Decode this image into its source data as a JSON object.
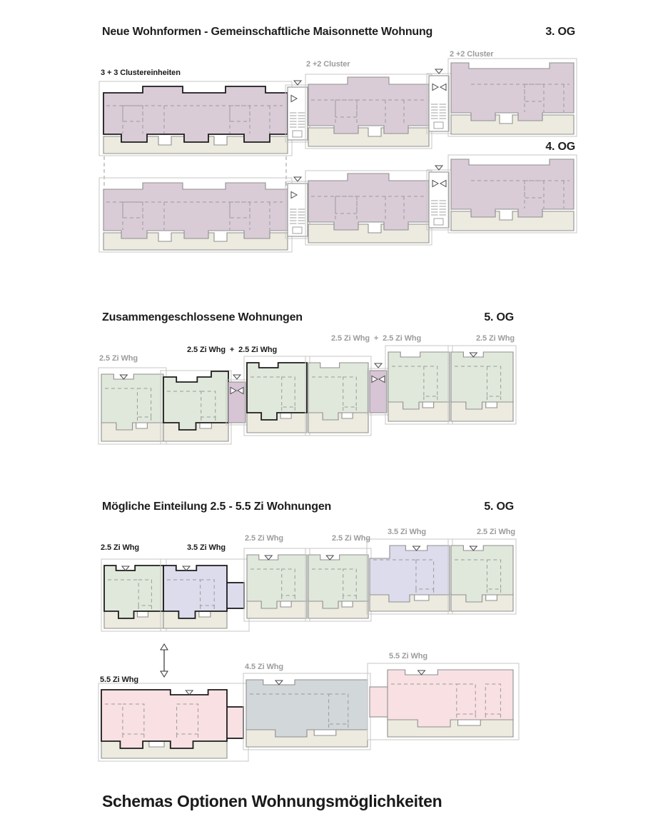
{
  "sections": {
    "s1": {
      "title": "Neue Wohnformen - Gemeinschaftliche Maisonnette Wohnung",
      "floor_top": "3. OG",
      "floor_bottom": "4. OG",
      "cluster33": "3 + 3 Clustereinheiten",
      "cluster22a": "2 +2 Cluster",
      "cluster22b": "2 +2 Cluster"
    },
    "s2": {
      "title": "Zusammengeschlossene Wohnungen",
      "floor": "5. OG",
      "label_left": "2.5 Zi Whg",
      "label_combo_bold": "2.5 Zi Whg  +  2.5 Zi Whg",
      "label_combo_gray": "2.5 Zi Whg  +  2.5 Zi Whg",
      "label_right": "2.5 Zi Whg"
    },
    "s3": {
      "title": "Mögliche Einteilung 2.5 - 5.5 Zi Wohnungen",
      "floor": "5. OG",
      "row1_labels": [
        "2.5 Zi Whg",
        "3.5 Zi Whg",
        "2.5 Zi Whg",
        "2.5 Zi Whg",
        "3.5 Zi Whg",
        "2.5 Zi Whg"
      ],
      "row2_labels": [
        "5.5 Zi Whg",
        "4.5 Zi Whg",
        "5.5 Zi Whg"
      ]
    },
    "caption": "Schemas Optionen Wohnungsmöglichkeiten",
    "colors": {
      "cluster_fill": "#d9ccd7",
      "apartment_green": "#e0e8dc",
      "apartment_lavender": "#dcdcec",
      "apartment_pink": "#f8e0e3",
      "apartment_bluegray": "#d2d7da",
      "balcony_beige": "#edebdf",
      "stair_connector_purple": "#d7c4d5",
      "outline_bold": "#1c1c1c",
      "outline_thin": "#8f8f8f",
      "label_gray": "#9c9c9c",
      "text_dark": "#1d1d1d"
    }
  }
}
